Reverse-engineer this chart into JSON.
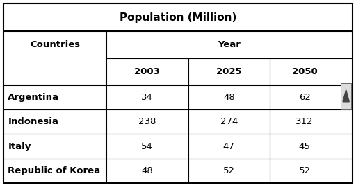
{
  "title": "Population (Million)",
  "group_header": "Year",
  "col_headers": [
    "Countries",
    "2003",
    "2025",
    "2050"
  ],
  "rows": [
    [
      "Argentina",
      "34",
      "48",
      "62"
    ],
    [
      "Indonesia",
      "238",
      "274",
      "312"
    ],
    [
      "Italy",
      "54",
      "47",
      "45"
    ],
    [
      "Republic of Korea",
      "48",
      "52",
      "52"
    ]
  ],
  "bg_color": "#ffffff",
  "title_fontsize": 11,
  "header_fontsize": 9.5,
  "cell_fontsize": 9.5
}
